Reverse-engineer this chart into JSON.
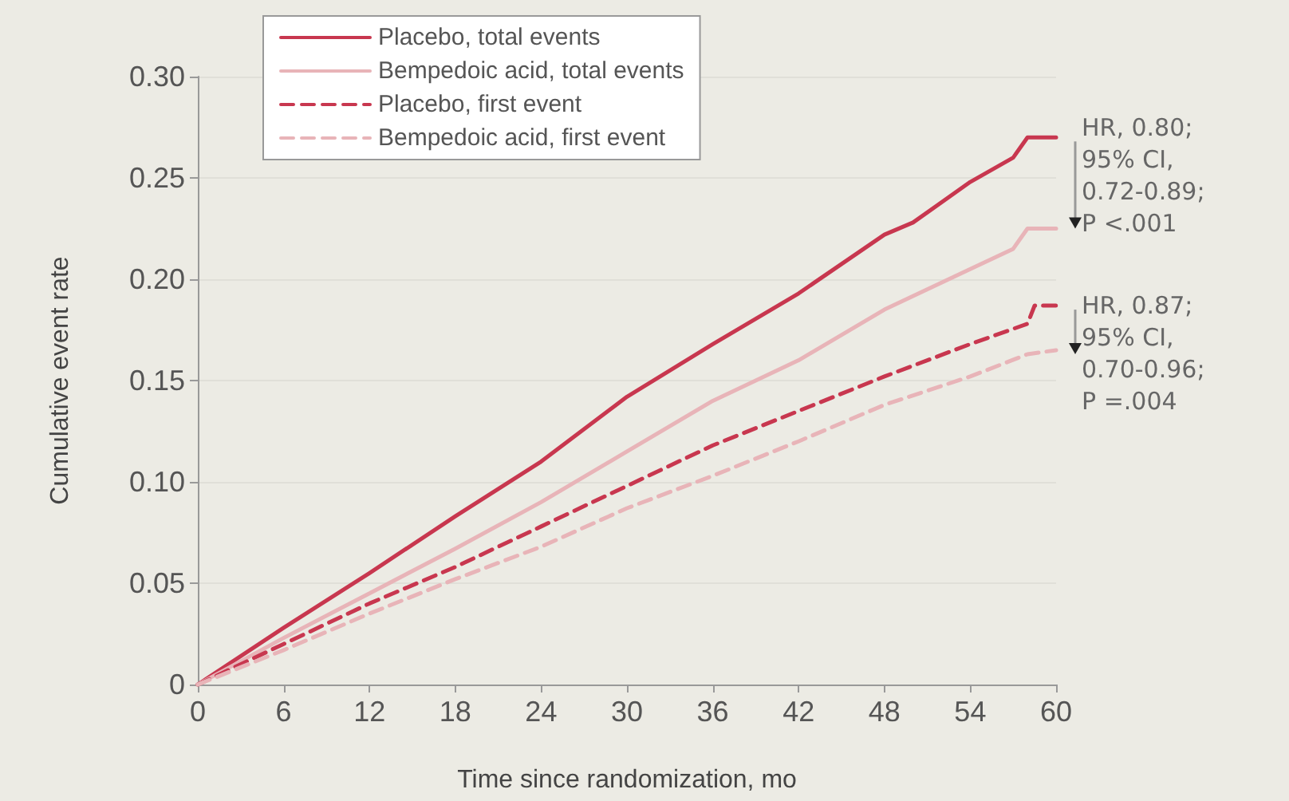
{
  "chart_data": {
    "type": "line",
    "xlabel": "Time since randomization, mo",
    "ylabel": "Cumulative event rate",
    "xlim": [
      0,
      60
    ],
    "xticks": [
      0,
      6,
      12,
      18,
      24,
      30,
      36,
      42,
      48,
      54,
      60
    ],
    "ylim": [
      0,
      0.3
    ],
    "yticks": [
      0,
      0.05,
      {
        "value": 0.1,
        "label": "0.10"
      },
      0.15,
      {
        "value": 0.2,
        "label": "0.20"
      },
      0.25,
      {
        "value": 0.3,
        "label": "0.30"
      }
    ],
    "grid": "y",
    "legend": "top",
    "marker": "none",
    "series": [
      {
        "name": "Placebo, total events",
        "color": "#c8374f",
        "line_style": "solid",
        "x": [
          0,
          6,
          12,
          18,
          24,
          30,
          36,
          42,
          48,
          50,
          54,
          57,
          58,
          60
        ],
        "values": [
          0,
          0.028,
          0.055,
          0.083,
          0.11,
          0.142,
          0.168,
          0.193,
          0.222,
          0.228,
          0.248,
          0.26,
          0.27,
          0.27
        ]
      },
      {
        "name": "Bempedoic acid, total events",
        "color": "#e8b4b8",
        "line_style": "solid",
        "x": [
          0,
          6,
          12,
          18,
          24,
          30,
          36,
          42,
          48,
          54,
          57,
          58,
          60
        ],
        "values": [
          0,
          0.023,
          0.045,
          0.067,
          0.09,
          0.115,
          0.14,
          0.16,
          0.185,
          0.205,
          0.215,
          0.225,
          0.225
        ]
      },
      {
        "name": "Placebo, first event",
        "color": "#c8374f",
        "line_style": "dashed",
        "x": [
          0,
          6,
          12,
          18,
          24,
          30,
          36,
          42,
          48,
          54,
          58,
          58.5,
          60
        ],
        "values": [
          0,
          0.02,
          0.04,
          0.058,
          0.078,
          0.098,
          0.118,
          0.135,
          0.152,
          0.168,
          0.178,
          0.187,
          0.187
        ]
      },
      {
        "name": "Bempedoic acid, first event",
        "color": "#e8b4b8",
        "line_style": "dashed",
        "x": [
          0,
          6,
          12,
          18,
          24,
          30,
          36,
          42,
          48,
          54,
          58,
          60
        ],
        "values": [
          0,
          0.017,
          0.035,
          0.052,
          0.068,
          0.087,
          0.103,
          0.12,
          0.138,
          0.152,
          0.163,
          0.165
        ]
      }
    ],
    "annotations": [
      "HR, 0.80;\n95% CI,\n0.72-0.89;\nP <.001",
      "HR, 0.87;\n95% CI,\n0.70-0.96;\nP =.004"
    ]
  }
}
